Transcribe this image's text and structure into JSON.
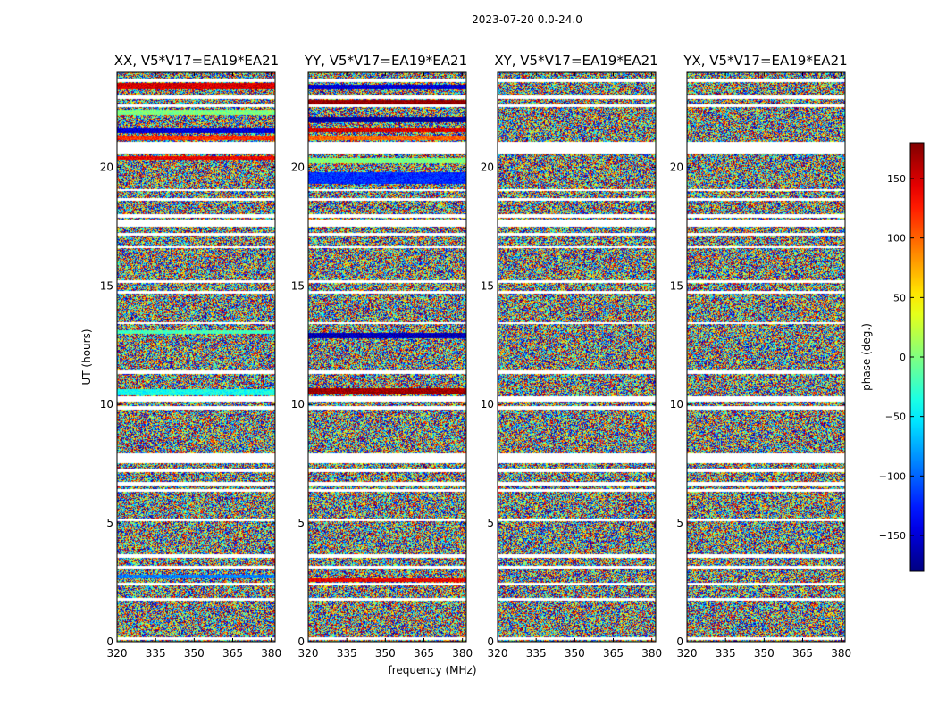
{
  "chart_data": {
    "type": "heatmap",
    "title": "2023-07-20 0.0-24.0",
    "xlabel": "frequency (MHz)",
    "ylabel": "UT (hours)",
    "xlim": [
      320,
      381.5
    ],
    "ylim": [
      0,
      24
    ],
    "xticks": [
      "320",
      "335",
      "350",
      "365",
      "380"
    ],
    "xtick_values": [
      320,
      335,
      350,
      365,
      380
    ],
    "yticks": [
      "0",
      "5",
      "10",
      "15",
      "20"
    ],
    "ytick_values": [
      0,
      5,
      10,
      15,
      20
    ],
    "colormap": "jet",
    "colorbar": {
      "label": "phase (deg.)",
      "range": [
        -180,
        180
      ],
      "ticks": [
        "−150",
        "−100",
        "−50",
        "0",
        "50",
        "100",
        "150"
      ],
      "tick_values": [
        -150,
        -100,
        -50,
        0,
        50,
        100,
        150
      ]
    },
    "panels": [
      {
        "title": "XX, V5*V17=EA19*EA21",
        "coherent_bands": [
          {
            "t": [
              23.3,
              23.55
            ],
            "phase": 150
          },
          {
            "t": [
              22.2,
              22.45
            ],
            "phase": 0
          },
          {
            "t": [
              21.45,
              21.7
            ],
            "phase": -150
          },
          {
            "t": [
              21.15,
              21.35
            ],
            "phase": 120
          },
          {
            "t": [
              20.35,
              20.5
            ],
            "phase": 140
          },
          {
            "t": [
              13.0,
              13.15
            ],
            "phase": -20
          },
          {
            "t": [
              10.4,
              10.65
            ],
            "phase": -40
          },
          {
            "t": [
              2.7,
              2.85
            ],
            "phase": -90
          }
        ]
      },
      {
        "title": "YY, V5*V17=EA19*EA21",
        "coherent_bands": [
          {
            "t": [
              23.3,
              23.5
            ],
            "phase": -150
          },
          {
            "t": [
              22.6,
              22.85
            ],
            "phase": 175
          },
          {
            "t": [
              21.9,
              22.15
            ],
            "phase": -170
          },
          {
            "t": [
              21.5,
              21.7
            ],
            "phase": 150
          },
          {
            "t": [
              21.15,
              21.35
            ],
            "phase": 100
          },
          {
            "t": [
              20.2,
              20.4
            ],
            "phase": 0
          },
          {
            "t": [
              19.3,
              19.8
            ],
            "phase": -120
          },
          {
            "t": [
              12.8,
              13.05
            ],
            "phase": -160
          },
          {
            "t": [
              10.45,
              10.7
            ],
            "phase": 170
          },
          {
            "t": [
              2.55,
              2.7
            ],
            "phase": 140
          }
        ]
      },
      {
        "title": "XY, V5*V17=EA19*EA21",
        "coherent_bands": []
      },
      {
        "title": "YX, V5*V17=EA19*EA21",
        "coherent_bands": []
      }
    ],
    "blank_gaps": [
      [
        23.6,
        23.75
      ],
      [
        22.9,
        23.05
      ],
      [
        22.55,
        22.65
      ],
      [
        20.6,
        21.1
      ],
      [
        19.0,
        19.1
      ],
      [
        18.6,
        18.7
      ],
      [
        17.9,
        18.05
      ],
      [
        17.5,
        17.8
      ],
      [
        17.15,
        17.25
      ],
      [
        16.6,
        16.7
      ],
      [
        15.15,
        15.25
      ],
      [
        14.7,
        14.8
      ],
      [
        13.4,
        13.5
      ],
      [
        11.3,
        11.45
      ],
      [
        10.15,
        10.35
      ],
      [
        9.8,
        9.95
      ],
      [
        7.55,
        7.95
      ],
      [
        7.15,
        7.3
      ],
      [
        6.6,
        6.75
      ],
      [
        6.35,
        6.45
      ],
      [
        5.1,
        5.2
      ],
      [
        3.55,
        3.7
      ],
      [
        3.1,
        3.2
      ],
      [
        2.4,
        2.5
      ],
      [
        1.75,
        1.85
      ],
      [
        0.1,
        0.2
      ]
    ],
    "legend": "none",
    "grid": false
  }
}
